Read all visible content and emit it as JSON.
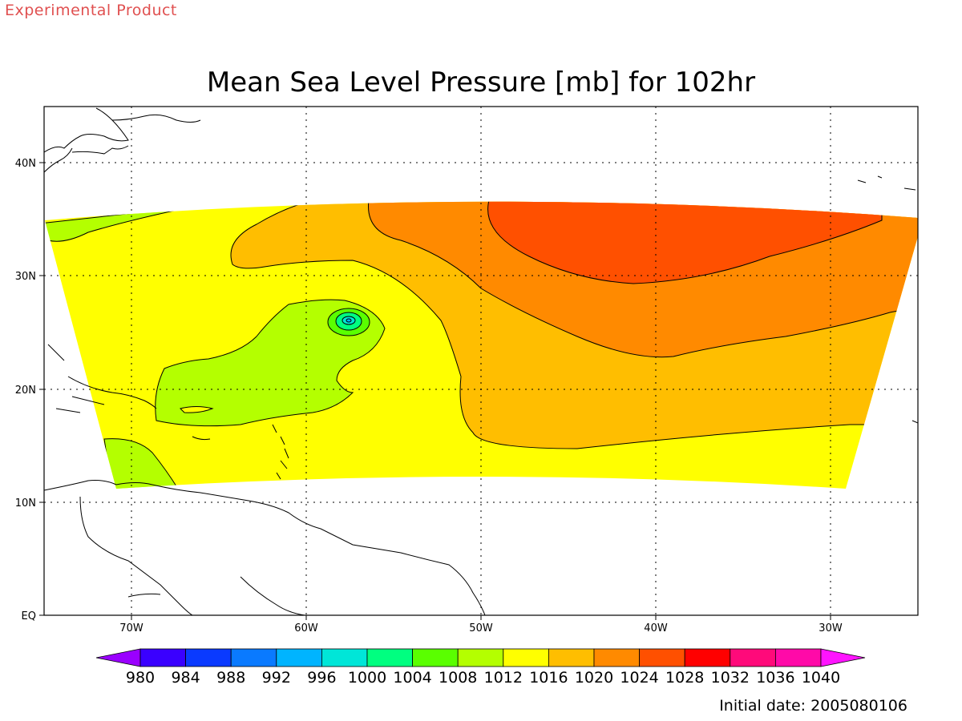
{
  "header": {
    "product_label": "Experimental Product",
    "title": "Mean Sea Level Pressure [mb] for 102hr"
  },
  "axes": {
    "lon_ticks": [
      "70W",
      "60W",
      "50W",
      "40W",
      "30W"
    ],
    "lat_ticks": [
      "EQ",
      "10N",
      "20N",
      "30N",
      "40N"
    ]
  },
  "colorbar": {
    "labels": [
      "980",
      "984",
      "988",
      "992",
      "996",
      "1000",
      "1004",
      "1008",
      "1012",
      "1016",
      "1020",
      "1024",
      "1028",
      "1032",
      "1036",
      "1040"
    ],
    "colors": [
      "#9a00ff",
      "#3a00ff",
      "#0a3aff",
      "#0a7aff",
      "#00b4ff",
      "#00e6d8",
      "#00ff80",
      "#5aff00",
      "#b4ff00",
      "#ffff00",
      "#ffbe00",
      "#ff8a00",
      "#ff5000",
      "#ff0000",
      "#ff0a7a",
      "#ff0aa8",
      "#ff14ff"
    ]
  },
  "legend_colors": {
    "coast": "#000000",
    "contour": "#000000"
  },
  "footer": {
    "initial_date": "Initial date: 2005080106"
  }
}
